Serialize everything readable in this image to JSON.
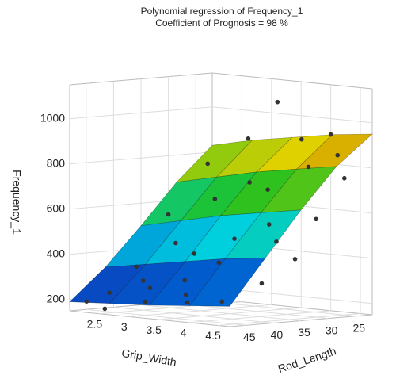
{
  "chart_data": {
    "type": "surface3d",
    "title": "Polynomial regression of Frequency_1",
    "subtitle": "Coefficient of Prognosis =     98 %",
    "xlabel": "Grip_Width",
    "ylabel": "Rod_Length",
    "zlabel": "Frequency_1",
    "xlim": [
      2,
      4.7
    ],
    "ylim": [
      48,
      22
    ],
    "zlim": [
      150,
      1150
    ],
    "xticks": [
      2.5,
      3,
      3.5,
      4,
      4.5
    ],
    "yticks": [
      25,
      30,
      35,
      40,
      45
    ],
    "zticks": [
      200,
      400,
      600,
      800,
      1000
    ],
    "grid": true,
    "colormap": [
      "#1a1aa0",
      "#0060d0",
      "#00d0e0",
      "#20c020",
      "#e0d000",
      "#b00000"
    ],
    "surface": {
      "x": [
        2,
        2.675,
        3.35,
        4.025,
        4.7
      ],
      "y": [
        48,
        41.5,
        35,
        28.5,
        22
      ],
      "z": [
        [
          190,
          330,
          500,
          680,
          830
        ],
        [
          200,
          360,
          540,
          720,
          870
        ],
        [
          210,
          390,
          580,
          760,
          900
        ],
        [
          225,
          420,
          610,
          790,
          930
        ],
        [
          240,
          440,
          640,
          820,
          950
        ]
      ]
    },
    "points": {
      "color": "#333333",
      "x": [
        2.1,
        2.3,
        2.5,
        2.2,
        2.8,
        3.0,
        3.2,
        3.5,
        3.8,
        4.2,
        4.5,
        2.4,
        2.9,
        3.3,
        3.7,
        4.1,
        4.4,
        2.6,
        3.0,
        3.4,
        3.9,
        4.3,
        2.2,
        2.7,
        3.1,
        3.6,
        4.0,
        4.6,
        2.0,
        4.6,
        3.5,
        2.5
      ],
      "y": [
        46,
        44,
        40,
        38,
        42,
        45,
        40,
        43,
        46,
        44,
        40,
        33,
        35,
        32,
        30,
        33,
        29,
        28,
        26,
        27,
        25,
        24,
        25,
        23,
        22,
        23,
        22,
        26,
        30,
        35,
        37,
        47
      ],
      "z": [
        190,
        230,
        280,
        330,
        260,
        210,
        300,
        250,
        230,
        240,
        320,
        430,
        400,
        470,
        540,
        480,
        580,
        620,
        700,
        680,
        790,
        850,
        760,
        880,
        1050,
        900,
        930,
        760,
        540,
        420,
        380,
        170
      ]
    }
  }
}
